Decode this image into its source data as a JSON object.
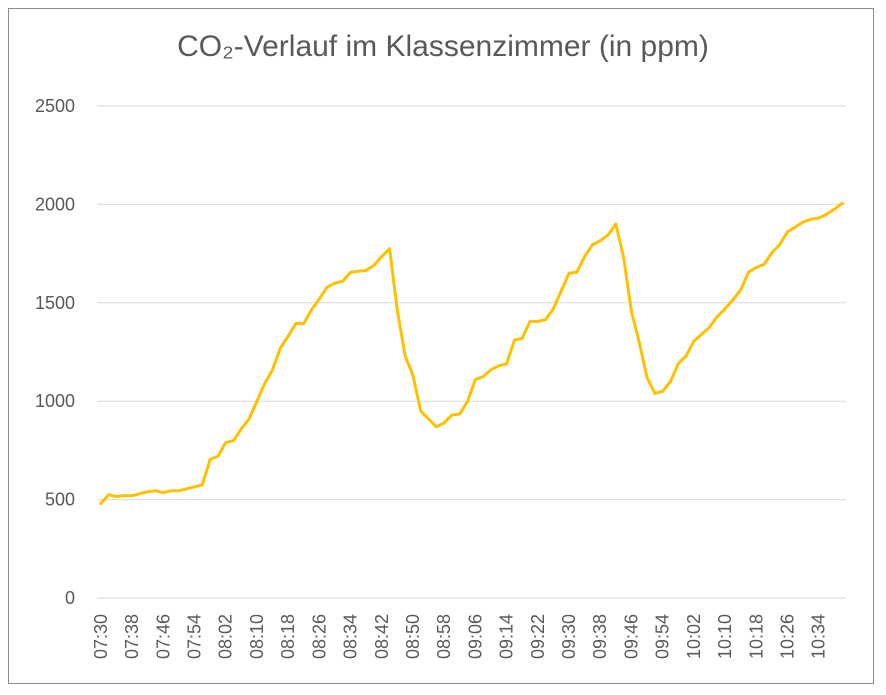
{
  "chart_data": {
    "type": "line",
    "title": "CO₂-Verlauf im Klassenzimmer (in ppm)",
    "xlabel": "",
    "ylabel": "",
    "ylim": [
      0,
      2500
    ],
    "yticks": [
      "0",
      "500",
      "1000",
      "1500",
      "2000",
      "2500"
    ],
    "xticks": [
      "07:30",
      "07:38",
      "07:46",
      "07:54",
      "08:02",
      "08:10",
      "08:18",
      "08:26",
      "08:34",
      "08:42",
      "08:50",
      "08:58",
      "09:06",
      "09:14",
      "09:22",
      "09:30",
      "09:38",
      "09:46",
      "09:54",
      "10:02",
      "10:10",
      "10:18",
      "10:26",
      "10:34"
    ],
    "grid": true,
    "legend": "none",
    "series": [
      {
        "color": "#FFC000",
        "x": [
          "07:30",
          "07:32",
          "07:34",
          "07:36",
          "07:38",
          "07:40",
          "07:42",
          "07:44",
          "07:46",
          "07:48",
          "07:50",
          "07:52",
          "07:54",
          "07:56",
          "07:58",
          "08:00",
          "08:02",
          "08:04",
          "08:06",
          "08:08",
          "08:10",
          "08:12",
          "08:14",
          "08:16",
          "08:18",
          "08:20",
          "08:22",
          "08:24",
          "08:26",
          "08:28",
          "08:30",
          "08:32",
          "08:34",
          "08:36",
          "08:38",
          "08:40",
          "08:42",
          "08:44",
          "08:46",
          "08:48",
          "08:50",
          "08:52",
          "08:54",
          "08:56",
          "08:58",
          "09:00",
          "09:02",
          "09:04",
          "09:06",
          "09:08",
          "09:10",
          "09:12",
          "09:14",
          "09:16",
          "09:18",
          "09:20",
          "09:22",
          "09:24",
          "09:26",
          "09:28",
          "09:30",
          "09:32",
          "09:34",
          "09:36",
          "09:38",
          "09:40",
          "09:42",
          "09:44",
          "09:46",
          "09:48",
          "09:50",
          "09:52",
          "09:54",
          "09:56",
          "09:58",
          "10:00",
          "10:02",
          "10:04",
          "10:06",
          "10:08",
          "10:10",
          "10:12",
          "10:14",
          "10:16",
          "10:18",
          "10:20",
          "10:22",
          "10:24",
          "10:26",
          "10:28",
          "10:30",
          "10:32",
          "10:34",
          "10:36",
          "10:38",
          "10:40"
        ],
        "values": [
          480,
          525,
          515,
          520,
          520,
          530,
          540,
          545,
          535,
          545,
          545,
          555,
          565,
          575,
          705,
          720,
          790,
          800,
          860,
          910,
          1000,
          1090,
          1160,
          1270,
          1330,
          1395,
          1395,
          1465,
          1520,
          1580,
          1600,
          1610,
          1655,
          1660,
          1665,
          1690,
          1735,
          1775,
          1460,
          1230,
          1130,
          950,
          910,
          870,
          890,
          930,
          935,
          1000,
          1110,
          1125,
          1160,
          1180,
          1190,
          1310,
          1320,
          1405,
          1405,
          1415,
          1470,
          1560,
          1650,
          1655,
          1735,
          1795,
          1815,
          1845,
          1900,
          1730,
          1455,
          1300,
          1120,
          1040,
          1050,
          1100,
          1190,
          1230,
          1305,
          1340,
          1375,
          1430,
          1470,
          1515,
          1565,
          1655,
          1680,
          1695,
          1755,
          1795,
          1860,
          1885,
          1910,
          1925,
          1930,
          1950,
          1975,
          2005
        ]
      }
    ]
  }
}
